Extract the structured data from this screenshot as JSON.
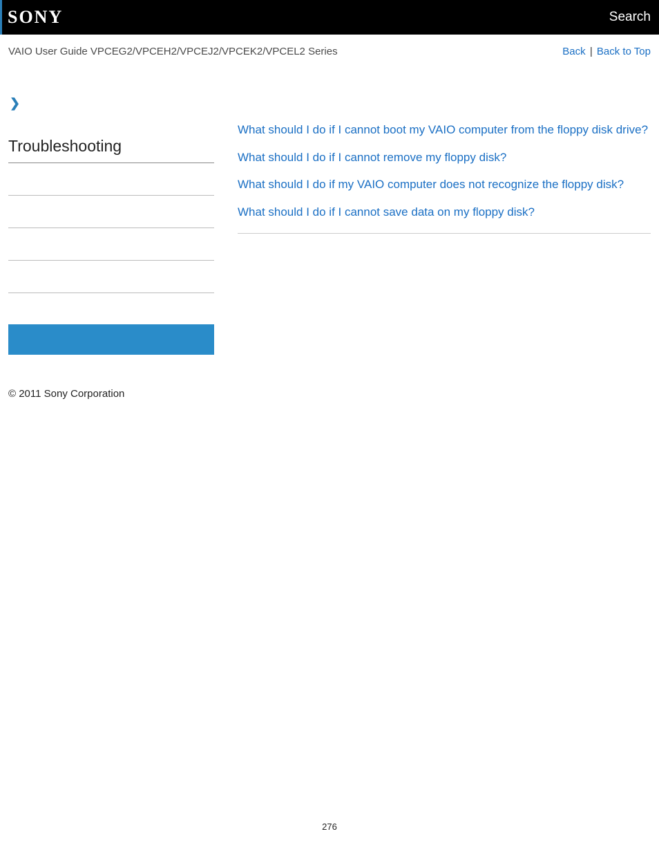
{
  "header": {
    "logo": "SONY",
    "search": "Search"
  },
  "subheader": {
    "guide_title": "VAIO User Guide VPCEG2/VPCEH2/VPCEJ2/VPCEK2/VPCEL2 Series",
    "back": "Back",
    "back_to_top": "Back to Top",
    "separator": " | "
  },
  "sidebar": {
    "chevron": "❯",
    "title": "Troubleshooting"
  },
  "faq": {
    "items": [
      "What should I do if I cannot boot my VAIO computer from the floppy disk drive?",
      "What should I do if I cannot remove my floppy disk?",
      "What should I do if my VAIO computer does not recognize the floppy disk?",
      "What should I do if I cannot save data on my floppy disk?"
    ]
  },
  "footer": {
    "copyright": "© 2011 Sony Corporation",
    "page_number": "276"
  },
  "colors": {
    "link": "#1a6fc4",
    "accent": "#2a8cc9",
    "header_bg": "#000000"
  }
}
